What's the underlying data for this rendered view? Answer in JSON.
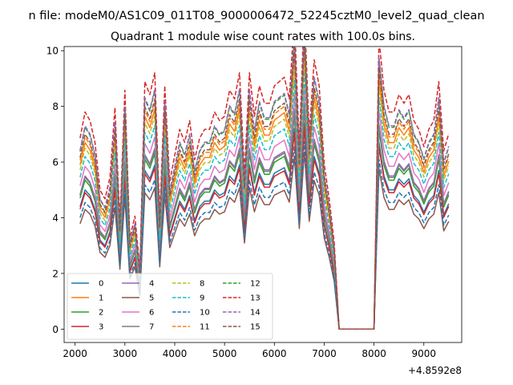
{
  "chart_data": {
    "type": "line",
    "suptitle": "n file: modeM0/AS1C09_011T08_9000006472_52245cztM0_level2_quad_clean",
    "title": "Quadrant 1 module wise count rates with 100.0s bins.",
    "xlabel": "",
    "ylabel": "",
    "x_offset_label": "+4.8592e8",
    "xlim": [
      1780,
      9760
    ],
    "ylim": [
      -0.48,
      10.15
    ],
    "xticks": [
      2000,
      3000,
      4000,
      5000,
      6000,
      7000,
      8000,
      9000
    ],
    "yticks": [
      0,
      2,
      4,
      6,
      8,
      10
    ],
    "grid": false,
    "legend_position": "lower-left",
    "x": [
      2100,
      2200,
      2300,
      2400,
      2500,
      2600,
      2700,
      2800,
      2900,
      3000,
      3100,
      3200,
      3300,
      3400,
      3500,
      3600,
      3700,
      3800,
      3900,
      4000,
      4100,
      4200,
      4300,
      4400,
      4500,
      4600,
      4700,
      4800,
      4900,
      5000,
      5100,
      5200,
      5300,
      5400,
      5500,
      5600,
      5700,
      5800,
      5900,
      6000,
      6100,
      6200,
      6300,
      6400,
      6500,
      6600,
      6700,
      6800,
      6900,
      7000,
      7100,
      7200,
      7300,
      7400,
      7500,
      7600,
      7700,
      7800,
      7900,
      8000,
      8100,
      8200,
      8300,
      8400,
      8500,
      8600,
      8700,
      8800,
      8900,
      9000,
      9100,
      9200,
      9300,
      9400,
      9500
    ],
    "base": [
      4.4,
      5.0,
      4.8,
      4.3,
      3.2,
      3.0,
      3.5,
      5.1,
      2.5,
      5.5,
      2.1,
      2.6,
      1.4,
      5.7,
      5.4,
      5.9,
      2.6,
      5.6,
      3.4,
      4.0,
      4.6,
      4.3,
      4.8,
      3.9,
      4.4,
      4.6,
      4.6,
      5.0,
      4.8,
      4.9,
      5.5,
      5.3,
      5.9,
      3.6,
      5.9,
      4.9,
      5.6,
      5.2,
      5.2,
      5.6,
      5.7,
      5.8,
      5.3,
      7.2,
      4.2,
      7.4,
      4.5,
      6.2,
      5.6,
      3.8,
      3.0,
      2.0,
      0.0,
      0.0,
      0.0,
      0.0,
      0.0,
      0.0,
      0.0,
      0.0,
      6.7,
      5.5,
      5.0,
      5.0,
      5.4,
      5.2,
      5.4,
      4.8,
      4.6,
      4.2,
      4.6,
      4.8,
      5.7,
      4.1,
      4.5
    ],
    "series": [
      {
        "name": "0",
        "color": "#1f77b4",
        "dashed": false,
        "scale": 1.0,
        "shift": 0.0
      },
      {
        "name": "1",
        "color": "#ff7f0e",
        "dashed": false,
        "scale": 1.34,
        "shift": 0.0
      },
      {
        "name": "2",
        "color": "#2ca02c",
        "dashed": false,
        "scale": 1.07,
        "shift": 0.0
      },
      {
        "name": "3",
        "color": "#d62728",
        "dashed": false,
        "scale": 0.98,
        "shift": 0.0
      },
      {
        "name": "4",
        "color": "#9467bd",
        "dashed": false,
        "scale": 1.1,
        "shift": 0.0
      },
      {
        "name": "5",
        "color": "#8c564b",
        "dashed": false,
        "scale": 0.86,
        "shift": 0.0
      },
      {
        "name": "6",
        "color": "#e377c2",
        "dashed": false,
        "scale": 1.17,
        "shift": 0.0
      },
      {
        "name": "7",
        "color": "#7f7f7f",
        "dashed": false,
        "scale": 1.09,
        "shift": 0.0
      },
      {
        "name": "8",
        "color": "#bcbd22",
        "dashed": true,
        "scale": 1.3,
        "shift": 0.0
      },
      {
        "name": "9",
        "color": "#17becf",
        "dashed": true,
        "scale": 1.24,
        "shift": 0.0
      },
      {
        "name": "10",
        "color": "#1f77b4",
        "dashed": true,
        "scale": 0.91,
        "shift": 0.0
      },
      {
        "name": "11",
        "color": "#ff7f0e",
        "dashed": true,
        "scale": 1.38,
        "shift": 0.0
      },
      {
        "name": "12",
        "color": "#2ca02c",
        "dashed": true,
        "scale": 1.45,
        "shift": 0.0
      },
      {
        "name": "13",
        "color": "#d62728",
        "dashed": true,
        "scale": 1.56,
        "shift": 0.0
      },
      {
        "name": "14",
        "color": "#9467bd",
        "dashed": true,
        "scale": 1.46,
        "shift": 0.0
      },
      {
        "name": "15",
        "color": "#8c564b",
        "dashed": true,
        "scale": 1.4,
        "shift": 0.0
      }
    ]
  }
}
